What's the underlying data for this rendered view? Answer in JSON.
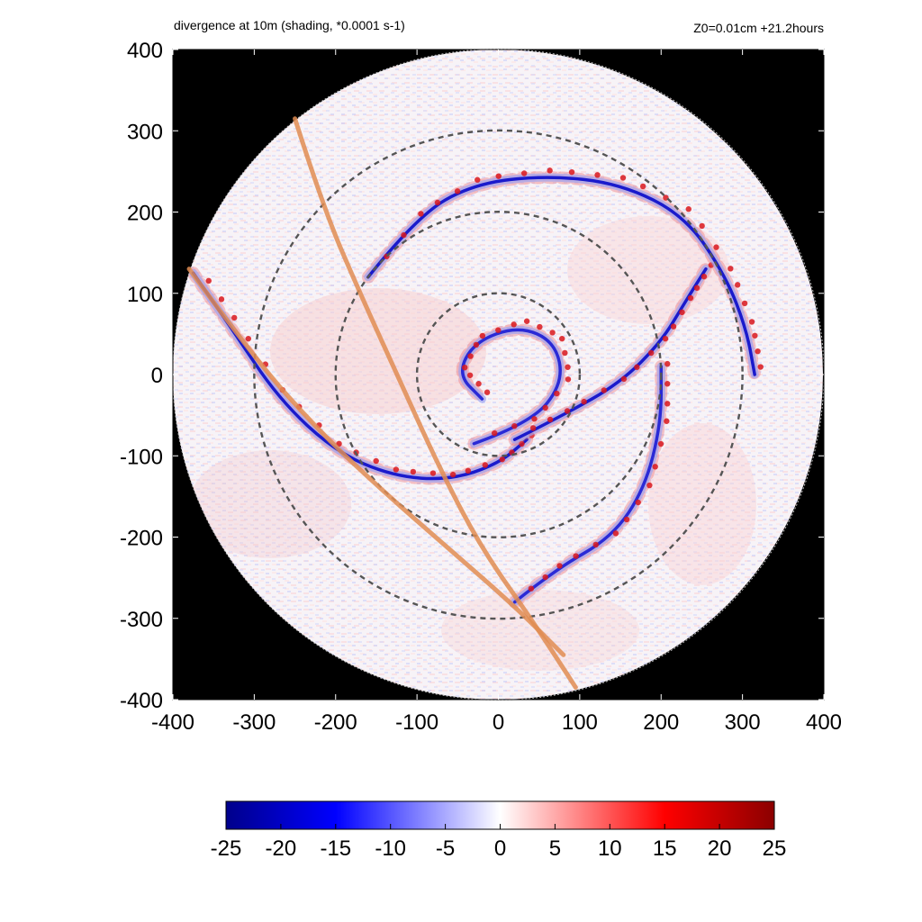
{
  "chart_data": {
    "type": "heatmap",
    "title": "divergence at 10m (shading, *0.0001 s-1)",
    "subtitle": "Z0=0.01cm  +21.2hours",
    "xlim": [
      -400,
      400
    ],
    "ylim": [
      -400,
      400
    ],
    "x_ticks": [
      -400,
      -300,
      -200,
      -100,
      0,
      100,
      200,
      300,
      400
    ],
    "y_ticks": [
      400,
      300,
      200,
      100,
      0,
      -100,
      -200,
      -300,
      -400
    ],
    "x_tick_labels": [
      "-400",
      "-300",
      "-200",
      "-100",
      "0",
      "100",
      "200",
      "300",
      "400"
    ],
    "y_tick_labels": [
      "400",
      "300",
      "200",
      "100",
      "0",
      "-100",
      "-200",
      "-300",
      "-400"
    ],
    "domain_radius": 400,
    "background_outside_domain": "#000000",
    "dashed_range_rings": [
      100,
      200,
      300
    ],
    "colorbar": {
      "min": -25,
      "max": 25,
      "ticks": [
        -25,
        -20,
        -15,
        -10,
        -5,
        0,
        5,
        10,
        15,
        20,
        25
      ],
      "tick_labels": [
        "-25",
        "-20",
        "-15",
        "-10",
        "-5",
        "0",
        "5",
        "10",
        "15",
        "20",
        "25"
      ],
      "colormap": [
        "#00008b",
        "#0000ff",
        "#ffffff",
        "#ff0000",
        "#8b0000"
      ]
    },
    "features": {
      "convergence_band_outer": {
        "color": "#1a1acc",
        "points": [
          [
            -375,
            125
          ],
          [
            -330,
            60
          ],
          [
            -270,
            -30
          ],
          [
            -200,
            -95
          ],
          [
            -130,
            -125
          ],
          [
            -60,
            -130
          ],
          [
            0,
            -110
          ],
          [
            35,
            -80
          ]
        ]
      },
      "convergence_band_spiral": {
        "color": "#1a1acc",
        "points": [
          [
            20,
            -80
          ],
          [
            80,
            -50
          ],
          [
            150,
            -10
          ],
          [
            200,
            40
          ],
          [
            230,
            90
          ],
          [
            255,
            130
          ]
        ]
      },
      "spiral_band_north": {
        "color": "#1a1acc",
        "points": [
          [
            -160,
            120
          ],
          [
            -100,
            195
          ],
          [
            -30,
            235
          ],
          [
            60,
            245
          ],
          [
            150,
            235
          ],
          [
            230,
            195
          ],
          [
            280,
            120
          ],
          [
            305,
            55
          ],
          [
            315,
            0
          ]
        ]
      },
      "inner_spiral": {
        "color": "#2a2ad6",
        "points": [
          [
            -30,
            -85
          ],
          [
            40,
            -60
          ],
          [
            80,
            -10
          ],
          [
            70,
            40
          ],
          [
            25,
            60
          ],
          [
            -30,
            40
          ],
          [
            -50,
            0
          ],
          [
            -20,
            -30
          ]
        ]
      },
      "south_rainband": {
        "color": "#2a2ad6",
        "points": [
          [
            20,
            -280
          ],
          [
            70,
            -240
          ],
          [
            140,
            -200
          ],
          [
            180,
            -140
          ],
          [
            200,
            -60
          ],
          [
            200,
            10
          ]
        ]
      },
      "track_1": {
        "color": "#e08c52",
        "points": [
          [
            -250,
            315
          ],
          [
            -215,
            205
          ],
          [
            -170,
            100
          ],
          [
            -120,
            -10
          ],
          [
            -70,
            -120
          ],
          [
            -20,
            -215
          ],
          [
            40,
            -300
          ],
          [
            95,
            -385
          ]
        ]
      },
      "track_2": {
        "color": "#e08c52",
        "points": [
          [
            -380,
            130
          ],
          [
            -300,
            20
          ],
          [
            -220,
            -70
          ],
          [
            -140,
            -145
          ],
          [
            -60,
            -215
          ],
          [
            20,
            -285
          ],
          [
            80,
            -345
          ]
        ]
      }
    }
  }
}
